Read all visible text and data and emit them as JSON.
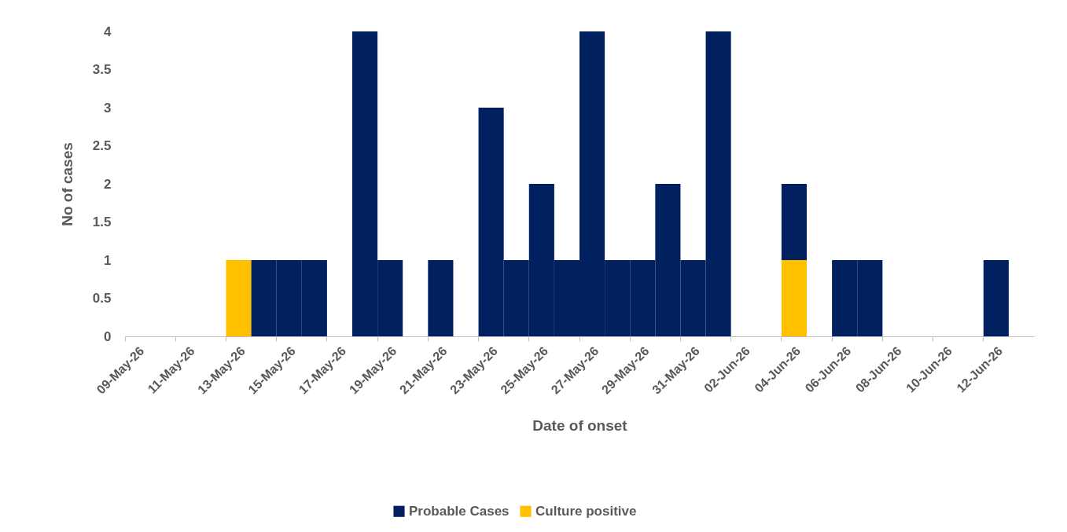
{
  "chart_data": {
    "type": "bar",
    "stacked": true,
    "xlabel": "Date of onset",
    "ylabel": "No of cases",
    "categories": [
      "09-May-26",
      null,
      "11-May-26",
      null,
      "13-May-26",
      null,
      "15-May-26",
      null,
      "17-May-26",
      null,
      "19-May-26",
      null,
      "21-May-26",
      null,
      "23-May-26",
      null,
      "25-May-26",
      null,
      "27-May-26",
      null,
      "29-May-26",
      null,
      "31-May-26",
      null,
      "02-Jun-26",
      null,
      "04-Jun-26",
      null,
      "06-Jun-26",
      null,
      "08-Jun-26",
      null,
      "10-Jun-26",
      null,
      "12-Jun-26",
      null
    ],
    "series": [
      {
        "name": "Culture positive",
        "color": "#ffc000",
        "values": [
          0,
          0,
          0,
          0,
          1,
          0,
          0,
          0,
          0,
          0,
          0,
          0,
          0,
          0,
          0,
          0,
          0,
          0,
          0,
          0,
          0,
          0,
          0,
          0,
          0,
          0,
          1,
          0,
          0,
          0,
          0,
          0,
          0,
          0,
          0,
          0
        ]
      },
      {
        "name": "Probable Cases",
        "color": "#002060",
        "values": [
          0,
          0,
          0,
          0,
          0,
          1,
          1,
          1,
          0,
          4,
          1,
          0,
          1,
          0,
          3,
          1,
          2,
          1,
          4,
          1,
          1,
          2,
          1,
          4,
          0,
          0,
          1,
          0,
          1,
          1,
          0,
          0,
          0,
          0,
          1,
          0
        ]
      }
    ],
    "ylim": [
      0,
      4
    ],
    "yticks": [
      0,
      0.5,
      1,
      1.5,
      2,
      2.5,
      3,
      3.5,
      4
    ],
    "grid": false,
    "legend": "bottom"
  }
}
